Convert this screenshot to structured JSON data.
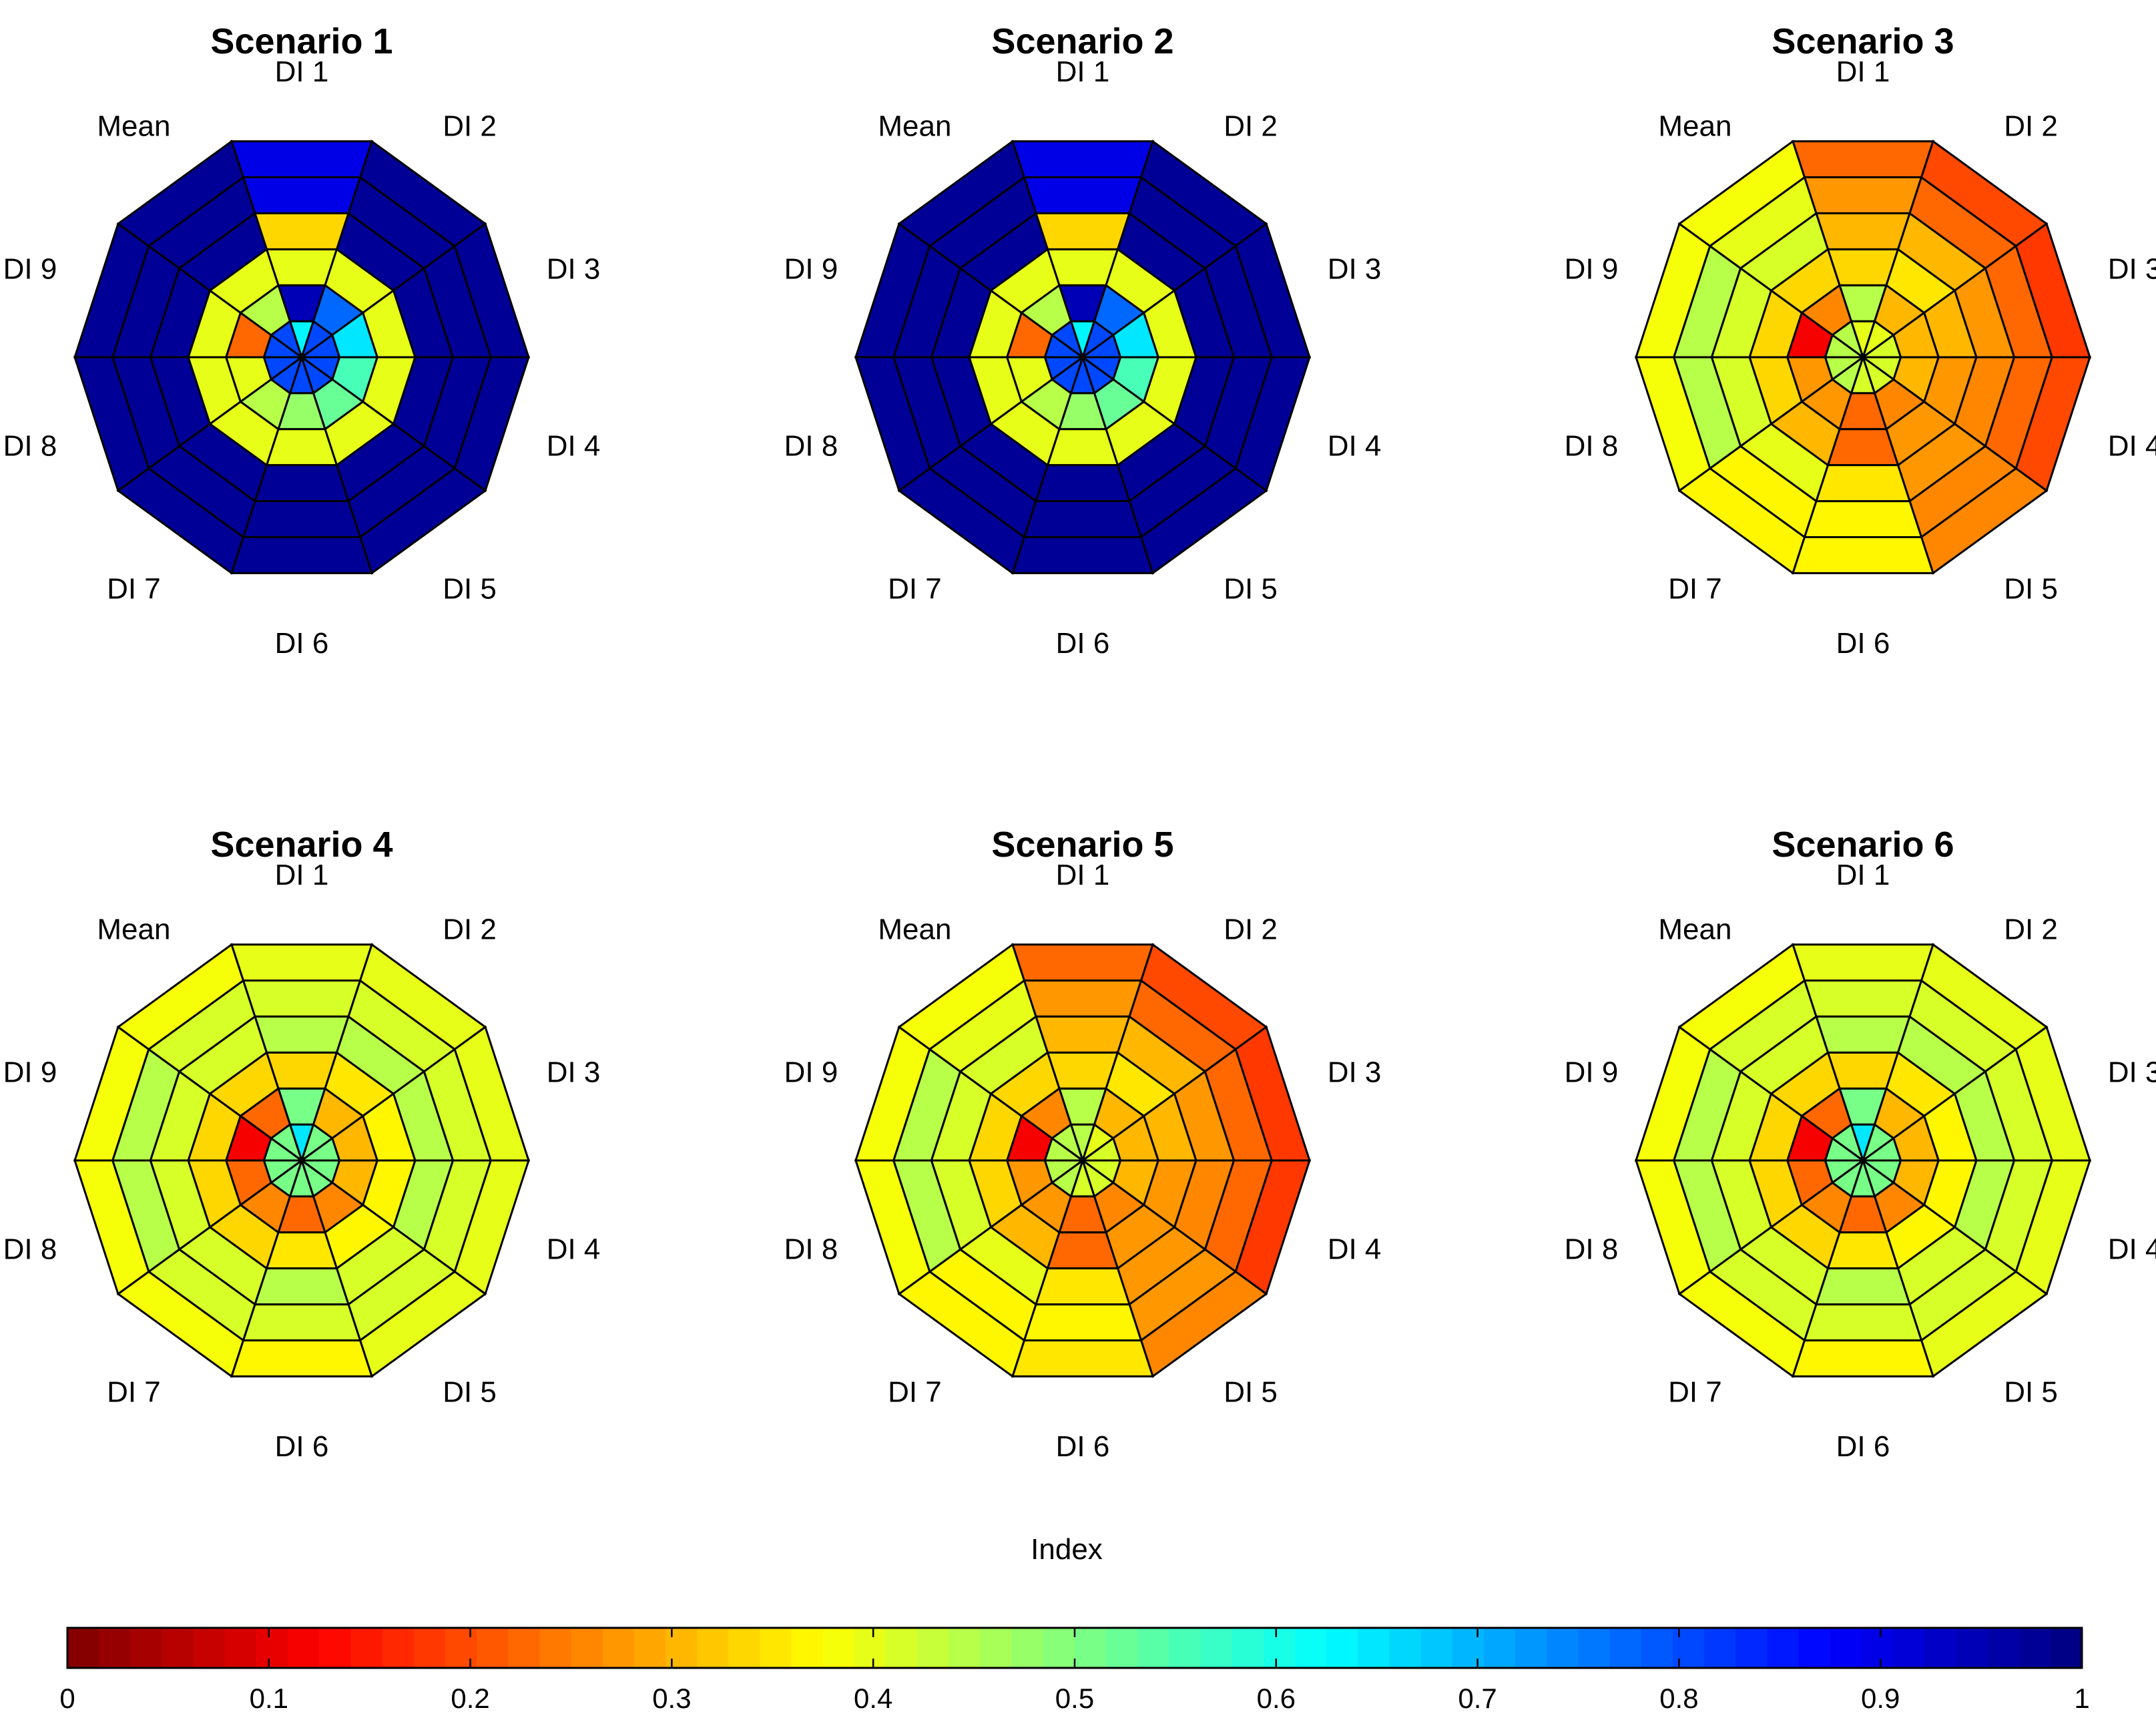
{
  "chart_data": {
    "type": "heatmap",
    "figure_kind": "polar sector heatmap (decagon)",
    "sectors": [
      "DI 1",
      "DI 2",
      "DI 3",
      "DI 4",
      "DI 5",
      "DI 6",
      "DI 7",
      "DI 8",
      "DI 9",
      "Mean"
    ],
    "rings": 6,
    "ring_order": "inner to outer",
    "value_range": [
      0,
      1
    ],
    "colormap": "jet (reversed, 0=dark red, 1=dark blue)",
    "colorbar": {
      "title": "Index",
      "ticks": [
        "0",
        "0.1",
        "0.2",
        "0.3",
        "0.4",
        "0.5",
        "0.6",
        "0.7",
        "0.8",
        "0.9",
        "1"
      ],
      "levels": 64,
      "placement": "bottom"
    },
    "panels": [
      {
        "title": "Scenario 1",
        "values": [
          [
            0.63,
            0.95,
            0.4,
            0.33,
            0.9,
            0.9
          ],
          [
            0.8,
            0.77,
            0.4,
            0.97,
            0.97,
            0.97
          ],
          [
            0.8,
            0.65,
            0.4,
            0.97,
            0.97,
            0.97
          ],
          [
            0.8,
            0.55,
            0.4,
            0.97,
            0.97,
            0.97
          ],
          [
            0.8,
            0.52,
            0.4,
            0.97,
            0.97,
            0.97
          ],
          [
            0.8,
            0.48,
            0.4,
            0.97,
            0.97,
            0.97
          ],
          [
            0.8,
            0.45,
            0.4,
            0.97,
            0.97,
            0.97
          ],
          [
            0.8,
            0.4,
            0.4,
            0.97,
            0.97,
            0.97
          ],
          [
            0.8,
            0.23,
            0.4,
            0.97,
            0.97,
            0.97
          ],
          [
            0.8,
            0.45,
            0.4,
            0.97,
            0.97,
            0.97
          ]
        ]
      },
      {
        "title": "Scenario 2",
        "values": [
          [
            0.63,
            0.95,
            0.4,
            0.33,
            0.9,
            0.9
          ],
          [
            0.8,
            0.77,
            0.4,
            0.97,
            0.97,
            0.97
          ],
          [
            0.8,
            0.65,
            0.4,
            0.97,
            0.97,
            0.97
          ],
          [
            0.8,
            0.55,
            0.4,
            0.97,
            0.97,
            0.97
          ],
          [
            0.8,
            0.52,
            0.4,
            0.97,
            0.97,
            0.97
          ],
          [
            0.8,
            0.48,
            0.4,
            0.97,
            0.97,
            0.97
          ],
          [
            0.8,
            0.45,
            0.4,
            0.97,
            0.97,
            0.97
          ],
          [
            0.8,
            0.4,
            0.4,
            0.97,
            0.97,
            0.97
          ],
          [
            0.8,
            0.23,
            0.4,
            0.97,
            0.97,
            0.97
          ],
          [
            0.8,
            0.45,
            0.4,
            0.97,
            0.97,
            0.97
          ]
        ]
      },
      {
        "title": "Scenario 3",
        "values": [
          [
            0.4,
            0.45,
            0.33,
            0.3,
            0.27,
            0.22
          ],
          [
            0.4,
            0.3,
            0.35,
            0.3,
            0.23,
            0.2
          ],
          [
            0.42,
            0.3,
            0.3,
            0.27,
            0.22,
            0.18
          ],
          [
            0.42,
            0.3,
            0.27,
            0.25,
            0.23,
            0.2
          ],
          [
            0.42,
            0.25,
            0.27,
            0.27,
            0.25,
            0.25
          ],
          [
            0.42,
            0.22,
            0.23,
            0.35,
            0.37,
            0.37
          ],
          [
            0.45,
            0.27,
            0.3,
            0.4,
            0.37,
            0.37
          ],
          [
            0.45,
            0.27,
            0.33,
            0.42,
            0.45,
            0.38
          ],
          [
            0.45,
            0.12,
            0.33,
            0.42,
            0.45,
            0.38
          ],
          [
            0.45,
            0.25,
            0.33,
            0.42,
            0.4,
            0.38
          ]
        ]
      },
      {
        "title": "Scenario 4",
        "values": [
          [
            0.65,
            0.5,
            0.33,
            0.45,
            0.42,
            0.4
          ],
          [
            0.5,
            0.3,
            0.35,
            0.45,
            0.42,
            0.4
          ],
          [
            0.5,
            0.3,
            0.37,
            0.45,
            0.42,
            0.4
          ],
          [
            0.5,
            0.3,
            0.37,
            0.45,
            0.42,
            0.4
          ],
          [
            0.5,
            0.25,
            0.37,
            0.42,
            0.42,
            0.4
          ],
          [
            0.5,
            0.22,
            0.35,
            0.45,
            0.42,
            0.37
          ],
          [
            0.5,
            0.25,
            0.33,
            0.42,
            0.42,
            0.38
          ],
          [
            0.5,
            0.22,
            0.33,
            0.42,
            0.45,
            0.38
          ],
          [
            0.5,
            0.12,
            0.33,
            0.42,
            0.45,
            0.38
          ],
          [
            0.5,
            0.22,
            0.33,
            0.42,
            0.42,
            0.38
          ]
        ]
      },
      {
        "title": "Scenario 5",
        "values": [
          [
            0.45,
            0.45,
            0.33,
            0.3,
            0.27,
            0.22
          ],
          [
            0.4,
            0.3,
            0.35,
            0.3,
            0.23,
            0.2
          ],
          [
            0.42,
            0.3,
            0.3,
            0.27,
            0.22,
            0.18
          ],
          [
            0.42,
            0.3,
            0.27,
            0.25,
            0.22,
            0.18
          ],
          [
            0.42,
            0.25,
            0.27,
            0.27,
            0.27,
            0.25
          ],
          [
            0.42,
            0.22,
            0.23,
            0.35,
            0.37,
            0.35
          ],
          [
            0.45,
            0.27,
            0.3,
            0.4,
            0.37,
            0.37
          ],
          [
            0.45,
            0.27,
            0.33,
            0.42,
            0.45,
            0.38
          ],
          [
            0.45,
            0.12,
            0.33,
            0.42,
            0.45,
            0.38
          ],
          [
            0.45,
            0.25,
            0.33,
            0.42,
            0.4,
            0.38
          ]
        ]
      },
      {
        "title": "Scenario 6",
        "values": [
          [
            0.65,
            0.5,
            0.33,
            0.45,
            0.42,
            0.4
          ],
          [
            0.5,
            0.3,
            0.35,
            0.45,
            0.42,
            0.4
          ],
          [
            0.5,
            0.3,
            0.37,
            0.45,
            0.42,
            0.4
          ],
          [
            0.5,
            0.3,
            0.37,
            0.45,
            0.42,
            0.4
          ],
          [
            0.5,
            0.25,
            0.37,
            0.42,
            0.42,
            0.4
          ],
          [
            0.5,
            0.22,
            0.35,
            0.45,
            0.42,
            0.37
          ],
          [
            0.5,
            0.25,
            0.33,
            0.42,
            0.42,
            0.38
          ],
          [
            0.5,
            0.22,
            0.33,
            0.42,
            0.45,
            0.38
          ],
          [
            0.5,
            0.12,
            0.33,
            0.42,
            0.45,
            0.38
          ],
          [
            0.5,
            0.22,
            0.33,
            0.42,
            0.42,
            0.38
          ]
        ]
      }
    ]
  }
}
